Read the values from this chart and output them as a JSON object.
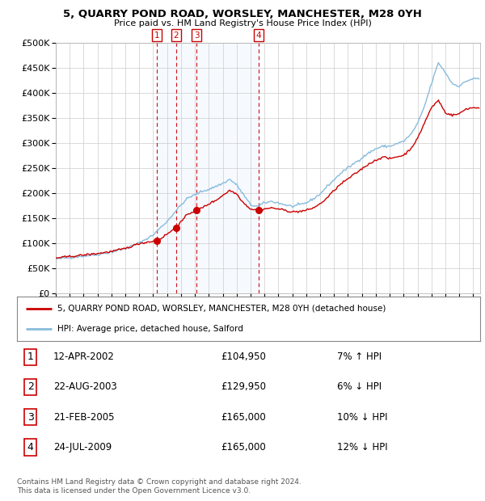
{
  "title": "5, QUARRY POND ROAD, WORSLEY, MANCHESTER, M28 0YH",
  "subtitle": "Price paid vs. HM Land Registry's House Price Index (HPI)",
  "legend_line1": "5, QUARRY POND ROAD, WORSLEY, MANCHESTER, M28 0YH (detached house)",
  "legend_line2": "HPI: Average price, detached house, Salford",
  "footer_line1": "Contains HM Land Registry data © Crown copyright and database right 2024.",
  "footer_line2": "This data is licensed under the Open Government Licence v3.0.",
  "transactions": [
    {
      "num": 1,
      "date": "12-APR-2002",
      "price": 104950,
      "pct": "7%",
      "dir": "↑"
    },
    {
      "num": 2,
      "date": "22-AUG-2003",
      "price": 129950,
      "pct": "6%",
      "dir": "↓"
    },
    {
      "num": 3,
      "date": "21-FEB-2005",
      "price": 165000,
      "pct": "10%",
      "dir": "↓"
    },
    {
      "num": 4,
      "date": "24-JUL-2009",
      "price": 165000,
      "pct": "12%",
      "dir": "↓"
    }
  ],
  "transaction_years": [
    2002.28,
    2003.64,
    2005.13,
    2009.56
  ],
  "transaction_prices": [
    104950,
    129950,
    165000,
    165000
  ],
  "hpi_color": "#88bbdd",
  "property_color": "#cc0000",
  "dashed_color": "#cc0000",
  "shade_color": "#ddeeff",
  "background_color": "#ffffff",
  "grid_color": "#cccccc",
  "ylim": [
    0,
    500000
  ],
  "xlim_start": 1995.0,
  "xlim_end": 2025.5,
  "yticks": [
    0,
    50000,
    100000,
    150000,
    200000,
    250000,
    300000,
    350000,
    400000,
    450000,
    500000
  ],
  "xticks": [
    1995,
    1996,
    1997,
    1998,
    1999,
    2000,
    2001,
    2002,
    2003,
    2004,
    2005,
    2006,
    2007,
    2008,
    2009,
    2010,
    2011,
    2012,
    2013,
    2014,
    2015,
    2016,
    2017,
    2018,
    2019,
    2020,
    2021,
    2022,
    2023,
    2024,
    2025
  ],
  "hpi_anchors": [
    [
      1995.0,
      68000
    ],
    [
      1996.0,
      71000
    ],
    [
      1997.0,
      74000
    ],
    [
      1998.0,
      77000
    ],
    [
      1999.0,
      82000
    ],
    [
      2000.0,
      89000
    ],
    [
      2001.0,
      100000
    ],
    [
      2002.0,
      116000
    ],
    [
      2002.5,
      130000
    ],
    [
      2003.0,
      143000
    ],
    [
      2003.5,
      160000
    ],
    [
      2004.0,
      176000
    ],
    [
      2004.5,
      190000
    ],
    [
      2005.0,
      196000
    ],
    [
      2005.5,
      203000
    ],
    [
      2006.0,
      207000
    ],
    [
      2006.5,
      213000
    ],
    [
      2007.0,
      219000
    ],
    [
      2007.5,
      227000
    ],
    [
      2008.0,
      216000
    ],
    [
      2008.5,
      196000
    ],
    [
      2009.0,
      176000
    ],
    [
      2009.5,
      173000
    ],
    [
      2010.0,
      180000
    ],
    [
      2010.5,
      183000
    ],
    [
      2011.0,
      180000
    ],
    [
      2011.5,
      176000
    ],
    [
      2012.0,
      173000
    ],
    [
      2012.5,
      176000
    ],
    [
      2013.0,
      180000
    ],
    [
      2013.5,
      188000
    ],
    [
      2014.0,
      198000
    ],
    [
      2014.5,
      213000
    ],
    [
      2015.0,
      226000
    ],
    [
      2015.5,
      240000
    ],
    [
      2016.0,
      250000
    ],
    [
      2016.5,
      260000
    ],
    [
      2017.0,
      270000
    ],
    [
      2017.5,
      280000
    ],
    [
      2018.0,
      288000
    ],
    [
      2018.5,
      293000
    ],
    [
      2019.0,
      293000
    ],
    [
      2019.5,
      298000
    ],
    [
      2020.0,
      303000
    ],
    [
      2020.5,
      316000
    ],
    [
      2021.0,
      338000
    ],
    [
      2021.5,
      373000
    ],
    [
      2022.0,
      418000
    ],
    [
      2022.5,
      460000
    ],
    [
      2023.0,
      440000
    ],
    [
      2023.5,
      418000
    ],
    [
      2024.0,
      413000
    ],
    [
      2024.5,
      423000
    ],
    [
      2025.0,
      428000
    ]
  ],
  "prop_anchors": [
    [
      1995.0,
      70000
    ],
    [
      1996.0,
      73000
    ],
    [
      1997.0,
      76000
    ],
    [
      1998.0,
      79000
    ],
    [
      1999.0,
      83000
    ],
    [
      2000.0,
      89000
    ],
    [
      2001.0,
      99000
    ],
    [
      2002.28,
      104950
    ],
    [
      2002.5,
      108000
    ],
    [
      2003.0,
      118000
    ],
    [
      2003.64,
      129950
    ],
    [
      2004.0,
      142000
    ],
    [
      2004.5,
      158000
    ],
    [
      2005.13,
      165000
    ],
    [
      2005.5,
      170000
    ],
    [
      2006.0,
      178000
    ],
    [
      2006.5,
      185000
    ],
    [
      2007.0,
      195000
    ],
    [
      2007.5,
      205000
    ],
    [
      2008.0,
      198000
    ],
    [
      2008.5,
      180000
    ],
    [
      2009.0,
      168000
    ],
    [
      2009.56,
      165000
    ],
    [
      2010.0,
      168000
    ],
    [
      2010.5,
      170000
    ],
    [
      2011.0,
      168000
    ],
    [
      2011.5,
      165000
    ],
    [
      2012.0,
      162000
    ],
    [
      2012.5,
      163000
    ],
    [
      2013.0,
      165000
    ],
    [
      2013.5,
      170000
    ],
    [
      2014.0,
      178000
    ],
    [
      2014.5,
      190000
    ],
    [
      2015.0,
      205000
    ],
    [
      2015.5,
      218000
    ],
    [
      2016.0,
      228000
    ],
    [
      2016.5,
      238000
    ],
    [
      2017.0,
      248000
    ],
    [
      2017.5,
      258000
    ],
    [
      2018.0,
      265000
    ],
    [
      2018.5,
      272000
    ],
    [
      2019.0,
      268000
    ],
    [
      2019.5,
      272000
    ],
    [
      2020.0,
      275000
    ],
    [
      2020.5,
      288000
    ],
    [
      2021.0,
      308000
    ],
    [
      2021.5,
      340000
    ],
    [
      2022.0,
      370000
    ],
    [
      2022.5,
      385000
    ],
    [
      2023.0,
      360000
    ],
    [
      2023.5,
      355000
    ],
    [
      2024.0,
      358000
    ],
    [
      2024.5,
      368000
    ],
    [
      2025.0,
      370000
    ]
  ]
}
